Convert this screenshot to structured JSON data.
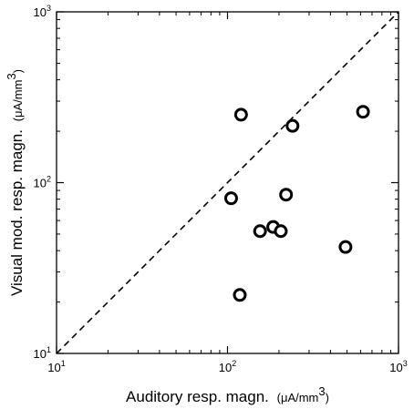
{
  "chart_data": {
    "type": "scatter",
    "title": "",
    "xlabel": "Auditory resp. magn.",
    "xunit_prefix": "(μA/mm",
    "xunit_exp": "3",
    "xunit_suffix": ")",
    "ylabel": "Visual mod. resp. magn.",
    "yunit_prefix": "(μA/mm",
    "yunit_exp": "3",
    "yunit_suffix": ")",
    "xscale": "log",
    "yscale": "log",
    "xlim": [
      10,
      1000
    ],
    "ylim": [
      10,
      1000
    ],
    "xticks": [
      {
        "base": "10",
        "exp": "1",
        "value": 10
      },
      {
        "base": "10",
        "exp": "2",
        "value": 100
      },
      {
        "base": "10",
        "exp": "3",
        "value": 1000
      }
    ],
    "yticks": [
      {
        "base": "10",
        "exp": "1",
        "value": 10
      },
      {
        "base": "10",
        "exp": "2",
        "value": 100
      },
      {
        "base": "10",
        "exp": "3",
        "value": 1000
      }
    ],
    "reference_line": {
      "style": "dashed",
      "from": [
        10,
        10
      ],
      "to": [
        1000,
        1000
      ]
    },
    "grid": false,
    "points": [
      {
        "x": 120,
        "y": 250
      },
      {
        "x": 240,
        "y": 215
      },
      {
        "x": 620,
        "y": 260
      },
      {
        "x": 105,
        "y": 81
      },
      {
        "x": 220,
        "y": 85
      },
      {
        "x": 185,
        "y": 55
      },
      {
        "x": 155,
        "y": 52
      },
      {
        "x": 205,
        "y": 52
      },
      {
        "x": 490,
        "y": 42
      },
      {
        "x": 118,
        "y": 22
      }
    ]
  }
}
